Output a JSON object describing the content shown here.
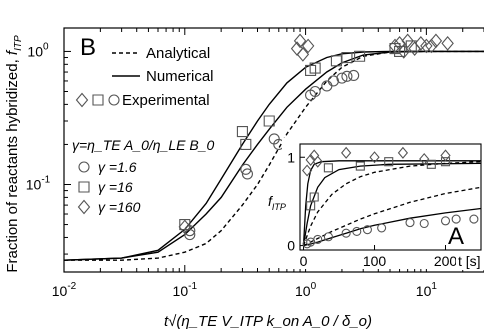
{
  "chart_data": [
    {
      "panel": "B",
      "type": "line",
      "panel_label": "B",
      "ylabel": "Fraction of reactants hybridized,",
      "ylabel_symbol": "f",
      "ylabel_sub": "ITP",
      "xlabel": "t√(η_TE V_ITP k_on A_0 / δ_o)",
      "x_scale": "log",
      "y_scale": "log",
      "xlim": [
        0.01,
        30
      ],
      "ylim": [
        0.022,
        1.5
      ],
      "x_ticks": [
        {
          "value": 0.01,
          "base": "10",
          "exp": "-2"
        },
        {
          "value": 0.1,
          "base": "10",
          "exp": "-1"
        },
        {
          "value": 1,
          "base": "10",
          "exp": "0"
        },
        {
          "value": 10,
          "base": "10",
          "exp": "1"
        }
      ],
      "y_ticks": [
        {
          "value": 0.1,
          "base": "10",
          "exp": "-1"
        },
        {
          "value": 1,
          "base": "10",
          "exp": "0"
        }
      ],
      "legend": {
        "analytical": "Analytical",
        "numerical": "Numerical",
        "experimental": "Experimental"
      },
      "gamma_definition": "γ=η_TE A_0/η_LE B_0",
      "series": [
        {
          "name": "Analytical",
          "style": "dashed",
          "x": [
            0.01,
            0.03,
            0.06,
            0.1,
            0.15,
            0.2,
            0.3,
            0.4,
            0.5,
            0.7,
            1.0,
            1.5,
            2,
            3,
            5,
            10,
            30
          ],
          "y": [
            0.027,
            0.027,
            0.028,
            0.031,
            0.036,
            0.045,
            0.07,
            0.1,
            0.14,
            0.24,
            0.38,
            0.6,
            0.76,
            0.92,
            0.99,
            1.0,
            1.0
          ]
        },
        {
          "name": "Numerical γ=1.6",
          "style": "solid",
          "x": [
            0.01,
            0.03,
            0.06,
            0.1,
            0.15,
            0.2,
            0.3,
            0.4,
            0.5,
            0.7,
            1.0,
            1.5,
            2,
            3,
            5,
            10,
            30
          ],
          "y": [
            0.027,
            0.028,
            0.031,
            0.042,
            0.06,
            0.08,
            0.14,
            0.2,
            0.26,
            0.38,
            0.52,
            0.7,
            0.82,
            0.94,
            0.99,
            1.0,
            1.0
          ]
        },
        {
          "name": "Numerical γ=16",
          "style": "solid",
          "x": [
            0.01,
            0.03,
            0.06,
            0.1,
            0.15,
            0.2,
            0.3,
            0.4,
            0.5,
            0.7,
            1.0,
            1.5,
            2,
            3,
            5,
            10,
            30
          ],
          "y": [
            0.027,
            0.028,
            0.032,
            0.046,
            0.072,
            0.11,
            0.2,
            0.3,
            0.4,
            0.58,
            0.76,
            0.9,
            0.96,
            0.99,
            1.0,
            1.0,
            1.0
          ]
        }
      ],
      "experimental": [
        {
          "gamma": "1.6",
          "marker": "circle",
          "x": [
            0.11,
            0.11,
            0.32,
            0.33,
            0.55,
            0.6,
            1.1,
            1.2,
            1.5,
            1.7,
            2.0,
            2.2,
            2.5
          ],
          "y": [
            0.045,
            0.042,
            0.13,
            0.12,
            0.22,
            0.2,
            0.47,
            0.5,
            0.55,
            0.6,
            0.63,
            0.65,
            0.66
          ]
        },
        {
          "gamma": "16",
          "marker": "square",
          "x": [
            0.1,
            0.3,
            0.32,
            0.5,
            1.1,
            1.2,
            1.8,
            2.2,
            2.8,
            5.5,
            6.0,
            7.5
          ],
          "y": [
            0.05,
            0.25,
            0.2,
            0.3,
            0.72,
            0.75,
            0.85,
            0.9,
            0.92,
            1.05,
            1.0,
            1.1
          ]
        },
        {
          "gamma": "160",
          "marker": "diamond",
          "x": [
            0.1,
            0.85,
            0.9,
            0.95,
            1.05,
            5.5,
            6.0,
            6.5,
            7.0,
            8.0,
            9.0,
            10.0,
            11.0,
            12.0,
            15.0
          ],
          "y": [
            0.048,
            1.05,
            1.2,
            0.95,
            1.1,
            1.1,
            1.15,
            1.0,
            1.2,
            1.05,
            1.15,
            1.1,
            1.1,
            1.2,
            1.15
          ]
        }
      ],
      "gamma_values": [
        {
          "marker": "circle",
          "label": "γ =1.6"
        },
        {
          "marker": "square",
          "label": "γ =16"
        },
        {
          "marker": "diamond",
          "label": "γ =160"
        }
      ]
    },
    {
      "panel": "A",
      "type": "line",
      "panel_label": "A",
      "xlabel": "t [s]",
      "ylabel_symbol": "f",
      "ylabel_sub": "ITP",
      "xlim": [
        -5,
        250
      ],
      "ylim": [
        -0.05,
        1.15
      ],
      "x_ticks": [
        0,
        100,
        200
      ],
      "y_ticks": [
        0,
        1
      ],
      "series": [
        {
          "name": "Analytical",
          "style": "dashed",
          "x": [
            0,
            10,
            20,
            40,
            60,
            80,
            100,
            150,
            200,
            250
          ],
          "y": [
            0,
            0.22,
            0.38,
            0.58,
            0.7,
            0.78,
            0.83,
            0.9,
            0.93,
            0.95
          ]
        },
        {
          "name": "Analytical slow",
          "style": "dashed",
          "x": [
            0,
            20,
            40,
            60,
            80,
            100,
            150,
            200,
            250
          ],
          "y": [
            0,
            0.08,
            0.16,
            0.23,
            0.3,
            0.36,
            0.49,
            0.59,
            0.66
          ]
        },
        {
          "name": "Numerical fast",
          "style": "solid",
          "x": [
            0,
            3,
            6,
            10,
            15,
            25,
            50,
            100,
            250
          ],
          "y": [
            0,
            0.45,
            0.7,
            0.85,
            0.92,
            0.95,
            0.96,
            0.96,
            0.96
          ]
        },
        {
          "name": "Numerical mid",
          "style": "solid",
          "x": [
            0,
            5,
            10,
            20,
            30,
            50,
            80,
            120,
            250
          ],
          "y": [
            0,
            0.25,
            0.45,
            0.66,
            0.77,
            0.86,
            0.9,
            0.92,
            0.93
          ]
        },
        {
          "name": "Numerical slow",
          "style": "solid",
          "x": [
            0,
            20,
            40,
            60,
            80,
            100,
            150,
            200,
            250
          ],
          "y": [
            0,
            0.04,
            0.09,
            0.14,
            0.19,
            0.23,
            0.31,
            0.37,
            0.42
          ]
        }
      ],
      "experimental": [
        {
          "gamma": "1.6",
          "marker": "circle",
          "x": [
            5,
            10,
            20,
            35,
            60,
            75,
            90,
            110,
            150,
            170,
            200,
            215,
            240
          ],
          "y": [
            0.02,
            0.04,
            0.07,
            0.1,
            0.14,
            0.16,
            0.18,
            0.2,
            0.26,
            0.25,
            0.28,
            0.3,
            0.3
          ]
        },
        {
          "gamma": "16",
          "marker": "square",
          "x": [
            10,
            15,
            35,
            80,
            120,
            180,
            200
          ],
          "y": [
            0.45,
            0.55,
            0.88,
            0.9,
            0.95,
            0.92,
            0.95
          ]
        },
        {
          "gamma": "160",
          "marker": "diamond",
          "x": [
            5,
            10,
            15,
            20,
            60,
            100,
            140,
            170,
            200
          ],
          "y": [
            0.85,
            0.97,
            1.02,
            0.95,
            1.05,
            1.0,
            1.05,
            0.98,
            1.02
          ]
        }
      ]
    }
  ]
}
